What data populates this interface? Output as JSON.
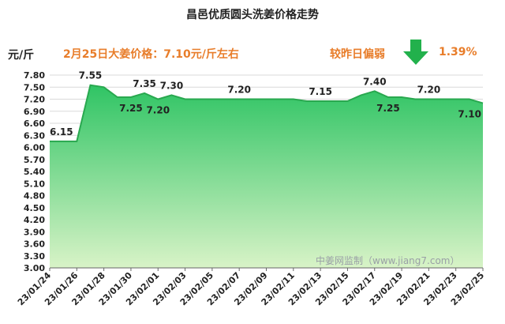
{
  "title": "昌邑优质圆头洗姜价格走势",
  "unit_label": "元/斤",
  "price_note": "2月25日大姜价格：7.10元/斤左右",
  "change": {
    "label": "较昨日偏弱",
    "value": "1.39%",
    "direction": "down"
  },
  "watermark": "中姜网监制（www.jiang7.com）",
  "colors": {
    "accent_text": "#e87d2a",
    "arrow": "#22b14c",
    "area_top": "#2fc464",
    "area_bottom": "#d8f3c7",
    "line": "#29a84f"
  },
  "chart_data": {
    "type": "area",
    "title": "昌邑优质圆头洗姜价格走势",
    "ylabel": "元/斤",
    "ylim": [
      3.0,
      7.8
    ],
    "yticks": [
      "7.80",
      "7.50",
      "7.20",
      "6.90",
      "6.60",
      "6.30",
      "6.00",
      "5.70",
      "5.40",
      "5.10",
      "4.80",
      "4.50",
      "4.20",
      "3.90",
      "3.60",
      "3.30",
      "3.00"
    ],
    "grid": true,
    "x_tick_labels": [
      "23/01/24",
      "23/01/26",
      "23/01/28",
      "23/01/30",
      "23/02/01",
      "23/02/03",
      "23/02/05",
      "23/02/07",
      "23/02/09",
      "23/02/11",
      "23/02/13",
      "23/02/15",
      "23/02/17",
      "23/02/19",
      "23/02/21",
      "23/02/23",
      "23/02/25"
    ],
    "series": [
      {
        "values": [
          {
            "x": "23/01/24",
            "y": 6.15
          },
          {
            "x": "23/01/25",
            "y": 6.15
          },
          {
            "x": "23/01/26",
            "y": 6.15
          },
          {
            "x": "23/01/27",
            "y": 7.55
          },
          {
            "x": "23/01/28",
            "y": 7.5
          },
          {
            "x": "23/01/29",
            "y": 7.25
          },
          {
            "x": "23/01/30",
            "y": 7.25
          },
          {
            "x": "23/01/31",
            "y": 7.35
          },
          {
            "x": "23/02/01",
            "y": 7.2
          },
          {
            "x": "23/02/02",
            "y": 7.3
          },
          {
            "x": "23/02/03",
            "y": 7.2
          },
          {
            "x": "23/02/04",
            "y": 7.2
          },
          {
            "x": "23/02/05",
            "y": 7.2
          },
          {
            "x": "23/02/06",
            "y": 7.2
          },
          {
            "x": "23/02/07",
            "y": 7.2
          },
          {
            "x": "23/02/08",
            "y": 7.2
          },
          {
            "x": "23/02/09",
            "y": 7.2
          },
          {
            "x": "23/02/10",
            "y": 7.2
          },
          {
            "x": "23/02/11",
            "y": 7.2
          },
          {
            "x": "23/02/12",
            "y": 7.15
          },
          {
            "x": "23/02/13",
            "y": 7.15
          },
          {
            "x": "23/02/14",
            "y": 7.15
          },
          {
            "x": "23/02/15",
            "y": 7.15
          },
          {
            "x": "23/02/16",
            "y": 7.3
          },
          {
            "x": "23/02/17",
            "y": 7.4
          },
          {
            "x": "23/02/18",
            "y": 7.25
          },
          {
            "x": "23/02/19",
            "y": 7.25
          },
          {
            "x": "23/02/20",
            "y": 7.2
          },
          {
            "x": "23/02/21",
            "y": 7.2
          },
          {
            "x": "23/02/22",
            "y": 7.2
          },
          {
            "x": "23/02/23",
            "y": 7.2
          },
          {
            "x": "23/02/24",
            "y": 7.2
          },
          {
            "x": "23/02/25",
            "y": 7.1
          }
        ]
      }
    ],
    "data_labels": [
      {
        "x": "23/01/24",
        "y": 6.15,
        "text": "6.15",
        "pos": "above"
      },
      {
        "x": "23/01/27",
        "y": 7.55,
        "text": "7.55",
        "pos": "above"
      },
      {
        "x": "23/01/30",
        "y": 7.25,
        "text": "7.25",
        "pos": "below"
      },
      {
        "x": "23/01/31",
        "y": 7.35,
        "text": "7.35",
        "pos": "above"
      },
      {
        "x": "23/02/01",
        "y": 7.2,
        "text": "7.20",
        "pos": "below"
      },
      {
        "x": "23/02/02",
        "y": 7.3,
        "text": "7.30",
        "pos": "above"
      },
      {
        "x": "23/02/07",
        "y": 7.2,
        "text": "7.20",
        "pos": "above"
      },
      {
        "x": "23/02/13",
        "y": 7.15,
        "text": "7.15",
        "pos": "above"
      },
      {
        "x": "23/02/17",
        "y": 7.4,
        "text": "7.40",
        "pos": "above"
      },
      {
        "x": "23/02/18",
        "y": 7.25,
        "text": "7.25",
        "pos": "below"
      },
      {
        "x": "23/02/21",
        "y": 7.2,
        "text": "7.20",
        "pos": "above"
      },
      {
        "x": "23/02/25",
        "y": 7.1,
        "text": "7.10",
        "pos": "below"
      }
    ]
  }
}
